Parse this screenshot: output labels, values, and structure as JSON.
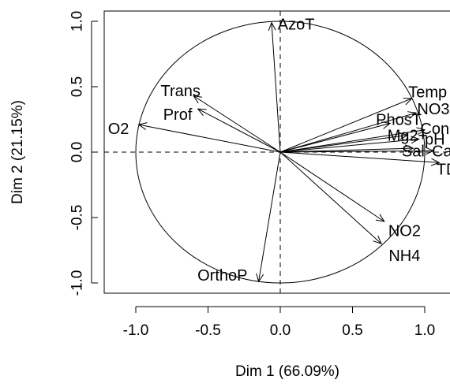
{
  "chart_data": {
    "type": "scatter",
    "subtype": "pca-correlation-circle",
    "xlabel": "Dim 1 (66.09%)",
    "ylabel": "Dim 2 (21.15%)",
    "xlim": [
      -1.2,
      1.2
    ],
    "ylim": [
      -1.1,
      1.1
    ],
    "xticks": [
      -1.0,
      -0.5,
      0.0,
      0.5,
      1.0
    ],
    "yticks": [
      -1.0,
      -0.5,
      0.0,
      0.5,
      1.0
    ],
    "unit_circle": true,
    "reference_lines": [
      "x = 0",
      "y = 0"
    ],
    "variables": [
      {
        "name": "AzoT",
        "x": -0.06,
        "y": 0.99
      },
      {
        "name": "Trans",
        "x": -0.6,
        "y": 0.43
      },
      {
        "name": "Prof",
        "x": -0.57,
        "y": 0.33
      },
      {
        "name": "O2",
        "x": -0.98,
        "y": 0.21
      },
      {
        "name": "Temp",
        "x": 0.91,
        "y": 0.41
      },
      {
        "name": "NO3",
        "x": 0.94,
        "y": 0.3
      },
      {
        "name": "PhosT",
        "x": 0.76,
        "y": 0.22
      },
      {
        "name": "Cond",
        "x": 1.0,
        "y": 0.17
      },
      {
        "name": "Mg2+",
        "x": 0.88,
        "y": 0.13
      },
      {
        "name": "pH",
        "x": 0.96,
        "y": 0.1
      },
      {
        "name": "Sal",
        "x": 0.92,
        "y": 0.03
      },
      {
        "name": "Ca",
        "x": 1.06,
        "y": 0.01
      },
      {
        "name": "TDS",
        "x": 1.1,
        "y": -0.08
      },
      {
        "name": "NO2",
        "x": 0.72,
        "y": -0.53
      },
      {
        "name": "NH4",
        "x": 0.7,
        "y": -0.7
      },
      {
        "name": "OrthoP",
        "x": -0.15,
        "y": -0.99
      }
    ],
    "labels": [
      {
        "text": "AzoT",
        "x": 0.11,
        "y": 0.98
      },
      {
        "text": "Trans",
        "x": -0.69,
        "y": 0.47
      },
      {
        "text": "Prof",
        "x": -0.71,
        "y": 0.29
      },
      {
        "text": "O2",
        "x": -1.12,
        "y": 0.18
      },
      {
        "text": "Temp",
        "x": 1.02,
        "y": 0.46
      },
      {
        "text": "NO3",
        "x": 1.06,
        "y": 0.33
      },
      {
        "text": "PhosT",
        "x": 0.82,
        "y": 0.25
      },
      {
        "text": "Cond",
        "x": 1.1,
        "y": 0.18
      },
      {
        "text": "Mg2+",
        "x": 0.88,
        "y": 0.13
      },
      {
        "text": "pH",
        "x": 1.07,
        "y": 0.1
      },
      {
        "text": "Sal",
        "x": 0.92,
        "y": 0.01
      },
      {
        "text": "Ca",
        "x": 1.12,
        "y": 0.01
      },
      {
        "text": "TDS",
        "x": 1.19,
        "y": -0.13
      },
      {
        "text": "NO2",
        "x": 0.86,
        "y": -0.6
      },
      {
        "text": "NH4",
        "x": 0.86,
        "y": -0.79
      },
      {
        "text": "OrthoP",
        "x": -0.4,
        "y": -0.94
      }
    ]
  }
}
